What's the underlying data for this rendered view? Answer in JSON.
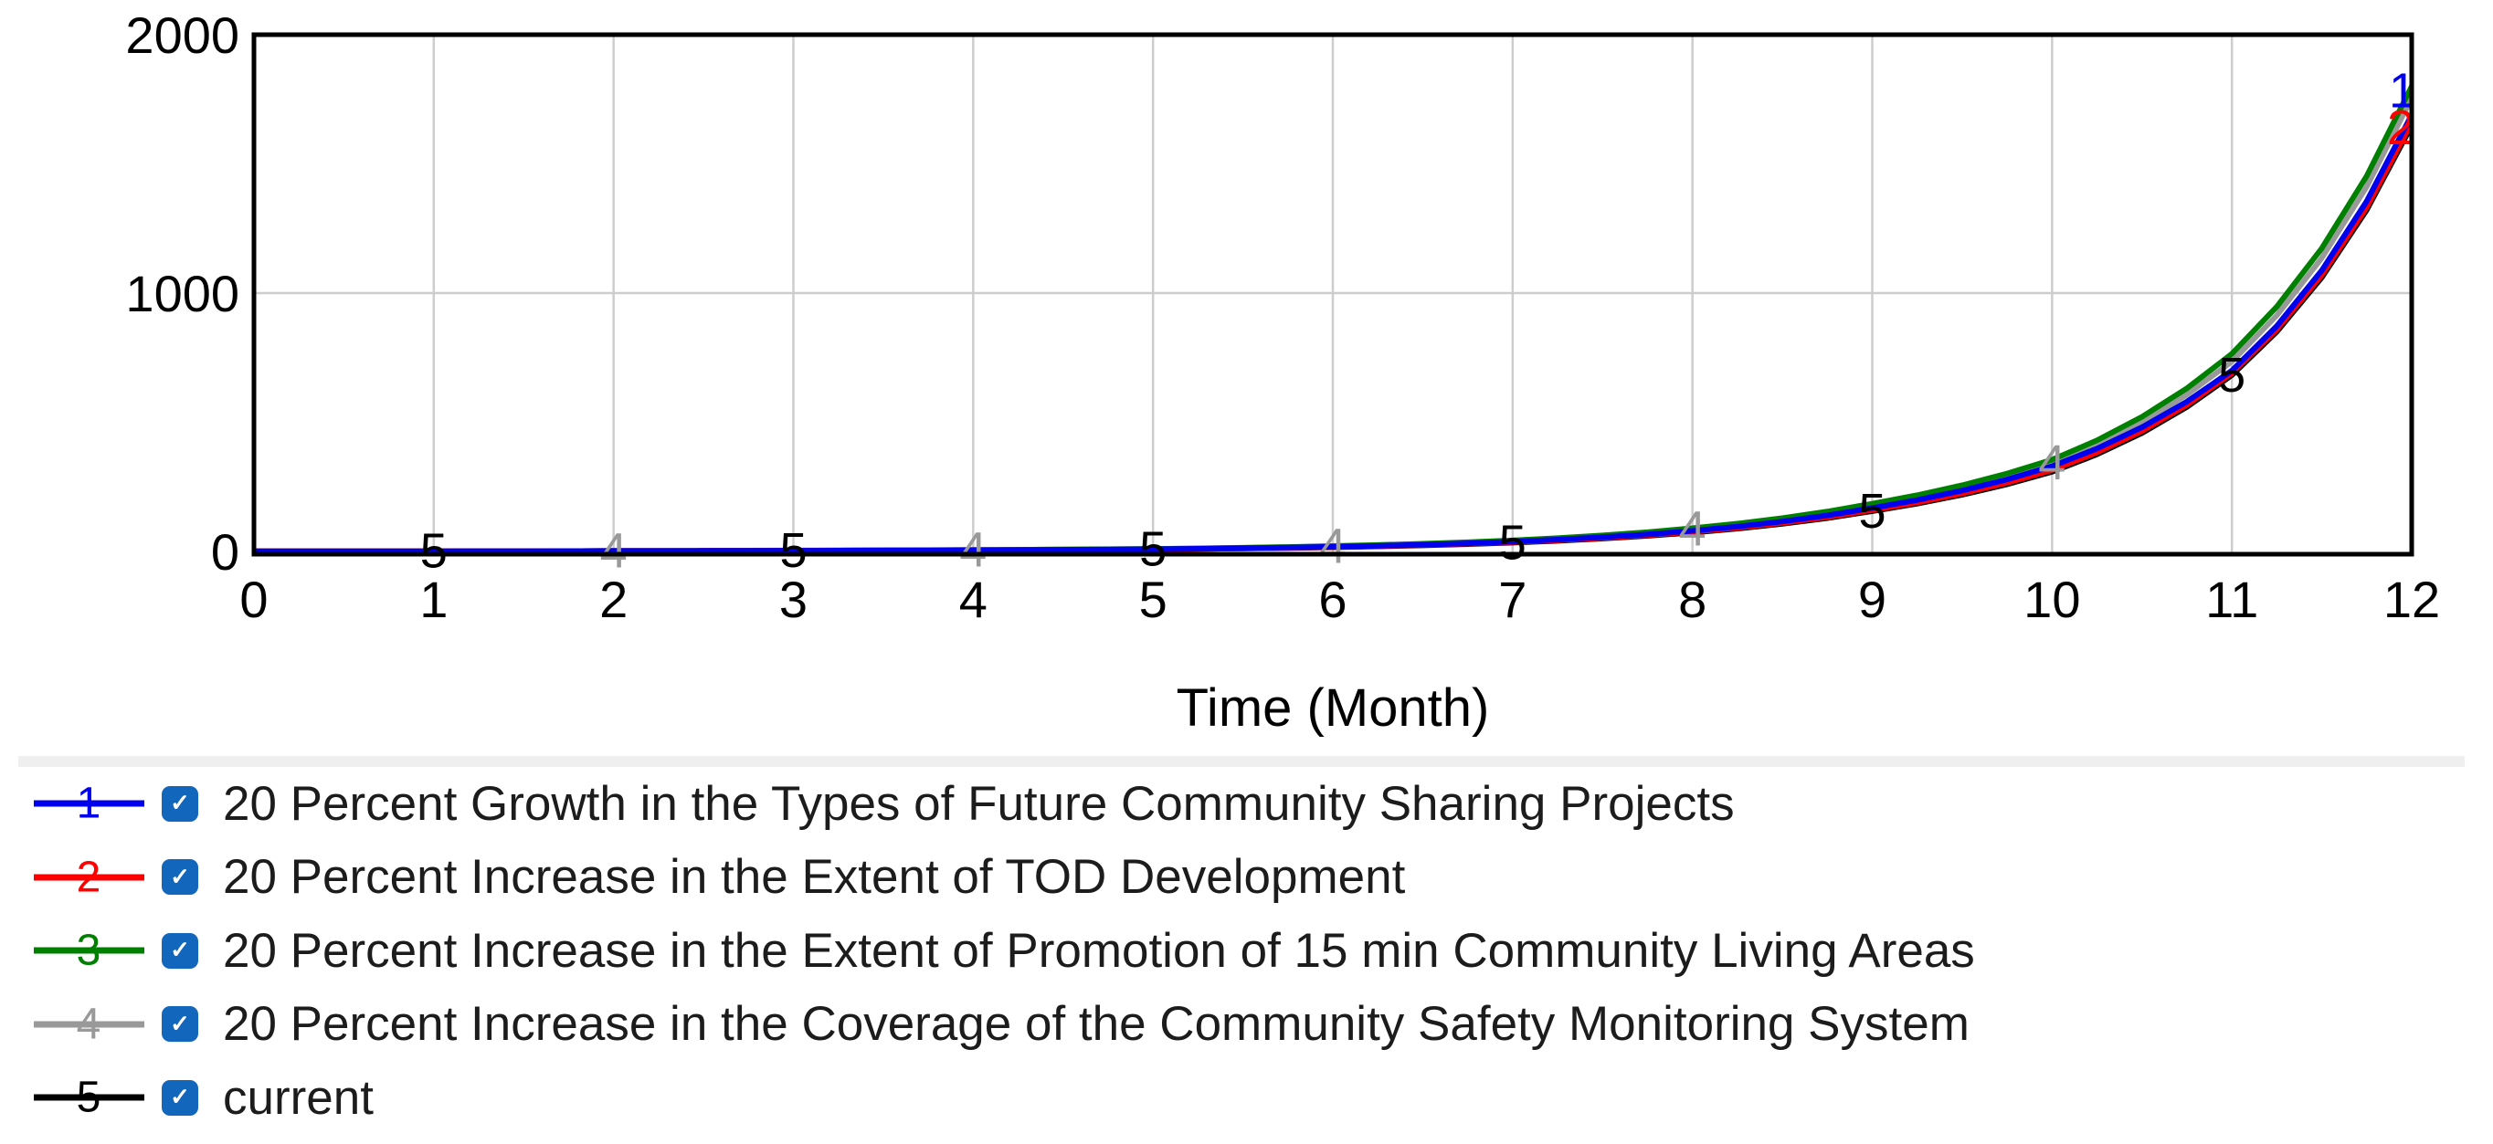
{
  "chart_data": {
    "type": "line",
    "title": "",
    "xlabel": "Time (Month)",
    "ylabel": "",
    "xlim": [
      0,
      12
    ],
    "ylim": [
      0,
      2000
    ],
    "x_ticks": [
      0,
      1,
      2,
      3,
      4,
      5,
      6,
      7,
      8,
      9,
      10,
      11,
      12
    ],
    "y_ticks": [
      0,
      1000,
      2000
    ],
    "grid": true,
    "grid_color": "#cdcdcd",
    "axis_color": "#000000",
    "legend_position": "bottom",
    "x": [
      0,
      1,
      2,
      3,
      4,
      5,
      6,
      7,
      8,
      9,
      10,
      11,
      12
    ],
    "series": [
      {
        "number": "1",
        "name": "20 Percent Growth in the Types of Future Community Sharing Projects",
        "color": "#0000ee",
        "checked": true,
        "values": [
          1,
          1,
          2,
          3,
          5,
          9,
          18,
          38,
          80,
          168,
          330,
          700,
          1690
        ],
        "markers": [
          {
            "month": 12,
            "dx": -10,
            "dy": -26
          }
        ]
      },
      {
        "number": "2",
        "name": "20 Percent Increase in the Extent of TOD Development",
        "color": "#ff0000",
        "checked": true,
        "values": [
          1,
          1,
          2,
          3,
          5,
          8,
          17,
          36,
          76,
          160,
          315,
          690,
          1660
        ],
        "markers": [
          {
            "month": 12,
            "dx": -12,
            "dy": 6
          }
        ]
      },
      {
        "number": "3",
        "name": "20 Percent Increase in the Extent of Promotion of 15 min Community Living Areas",
        "color": "#008000",
        "checked": true,
        "values": [
          1,
          1,
          2,
          4,
          6,
          10,
          21,
          43,
          90,
          185,
          355,
          765,
          1800
        ],
        "markers": []
      },
      {
        "number": "4",
        "name": "20 Percent Increase in the Coverage of the Community Safety Monitoring System",
        "color": "#999999",
        "checked": true,
        "values": [
          1,
          1,
          2,
          3,
          6,
          10,
          20,
          41,
          86,
          178,
          342,
          735,
          1755
        ],
        "markers": [
          {
            "month": 2
          },
          {
            "month": 4
          },
          {
            "month": 6
          },
          {
            "month": 8
          },
          {
            "month": 10
          }
        ]
      },
      {
        "number": "5",
        "name": "current",
        "color": "#000000",
        "checked": true,
        "values": [
          1,
          1,
          2,
          3,
          5,
          8,
          16,
          34,
          73,
          156,
          308,
          682,
          1648
        ],
        "markers": [
          {
            "month": 1
          },
          {
            "month": 3
          },
          {
            "month": 5
          },
          {
            "month": 7
          },
          {
            "month": 9
          },
          {
            "month": 11
          }
        ]
      }
    ]
  },
  "legend": {
    "checkbox_color": "#1266bb",
    "checkmark": "✓"
  }
}
